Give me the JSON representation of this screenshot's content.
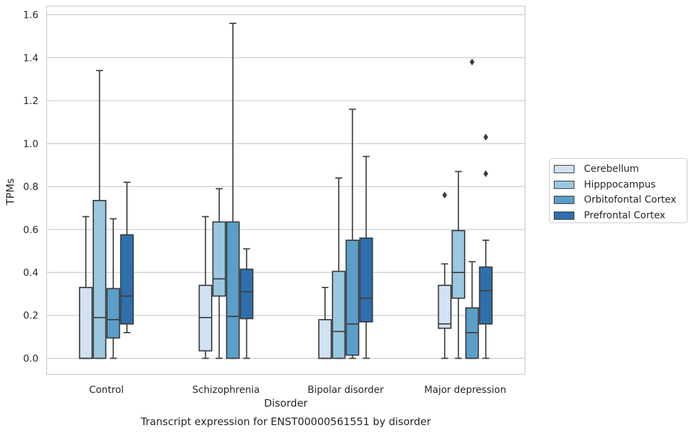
{
  "chart_data": {
    "type": "box",
    "title": "",
    "caption": "Transcript expression for ENST00000561551 by disorder",
    "xlabel": "Disorder",
    "ylabel": "TPMs",
    "ylim": [
      -0.075,
      1.64
    ],
    "yticks": [
      "0.0",
      "0.2",
      "0.4",
      "0.6",
      "0.8",
      "1.0",
      "1.2",
      "1.4",
      "1.6"
    ],
    "grid": "horizontal",
    "legend_position": "right",
    "categories": [
      "Control",
      "Schizophrenia",
      "Bipolar disorder",
      "Major depression"
    ],
    "series": [
      {
        "name": "Cerebellum",
        "color": "#d1e2f2",
        "boxes": [
          {
            "whislo": 0.0,
            "q1": 0.0,
            "med": 0.0,
            "q3": 0.33,
            "whishi": 0.66,
            "fliers": []
          },
          {
            "whislo": 0.0,
            "q1": 0.035,
            "med": 0.19,
            "q3": 0.34,
            "whishi": 0.66,
            "fliers": []
          },
          {
            "whislo": 0.0,
            "q1": 0.0,
            "med": 0.0,
            "q3": 0.18,
            "whishi": 0.33,
            "fliers": []
          },
          {
            "whislo": 0.0,
            "q1": 0.14,
            "med": 0.16,
            "q3": 0.34,
            "whishi": 0.44,
            "fliers": [
              0.76
            ]
          }
        ]
      },
      {
        "name": "Hipppocampus",
        "color": "#9ac8e0",
        "boxes": [
          {
            "whislo": 0.0,
            "q1": 0.0,
            "med": 0.19,
            "q3": 0.735,
            "whishi": 1.34,
            "fliers": []
          },
          {
            "whislo": 0.0,
            "q1": 0.29,
            "med": 0.37,
            "q3": 0.635,
            "whishi": 0.79,
            "fliers": []
          },
          {
            "whislo": 0.0,
            "q1": 0.0,
            "med": 0.125,
            "q3": 0.405,
            "whishi": 0.84,
            "fliers": []
          },
          {
            "whislo": 0.0,
            "q1": 0.28,
            "med": 0.4,
            "q3": 0.595,
            "whishi": 0.87,
            "fliers": []
          }
        ]
      },
      {
        "name": "Orbitofontal Cortex",
        "color": "#5a9ec9",
        "boxes": [
          {
            "whislo": 0.0,
            "q1": 0.095,
            "med": 0.18,
            "q3": 0.325,
            "whishi": 0.65,
            "fliers": []
          },
          {
            "whislo": 0.0,
            "q1": 0.0,
            "med": 0.195,
            "q3": 0.635,
            "whishi": 1.56,
            "fliers": []
          },
          {
            "whislo": 0.0,
            "q1": 0.015,
            "med": 0.16,
            "q3": 0.55,
            "whishi": 1.16,
            "fliers": []
          },
          {
            "whislo": 0.0,
            "q1": 0.0,
            "med": 0.12,
            "q3": 0.235,
            "whishi": 0.45,
            "fliers": [
              1.38
            ]
          }
        ]
      },
      {
        "name": "Prefrontal Cortex",
        "color": "#2e6fad",
        "boxes": [
          {
            "whislo": 0.12,
            "q1": 0.16,
            "med": 0.29,
            "q3": 0.575,
            "whishi": 0.82,
            "fliers": []
          },
          {
            "whislo": 0.0,
            "q1": 0.185,
            "med": 0.31,
            "q3": 0.415,
            "whishi": 0.51,
            "fliers": []
          },
          {
            "whislo": 0.0,
            "q1": 0.17,
            "med": 0.28,
            "q3": 0.56,
            "whishi": 0.94,
            "fliers": []
          },
          {
            "whislo": 0.0,
            "q1": 0.16,
            "med": 0.315,
            "q3": 0.425,
            "whishi": 0.55,
            "fliers": [
              0.86,
              1.03
            ]
          }
        ]
      }
    ]
  }
}
